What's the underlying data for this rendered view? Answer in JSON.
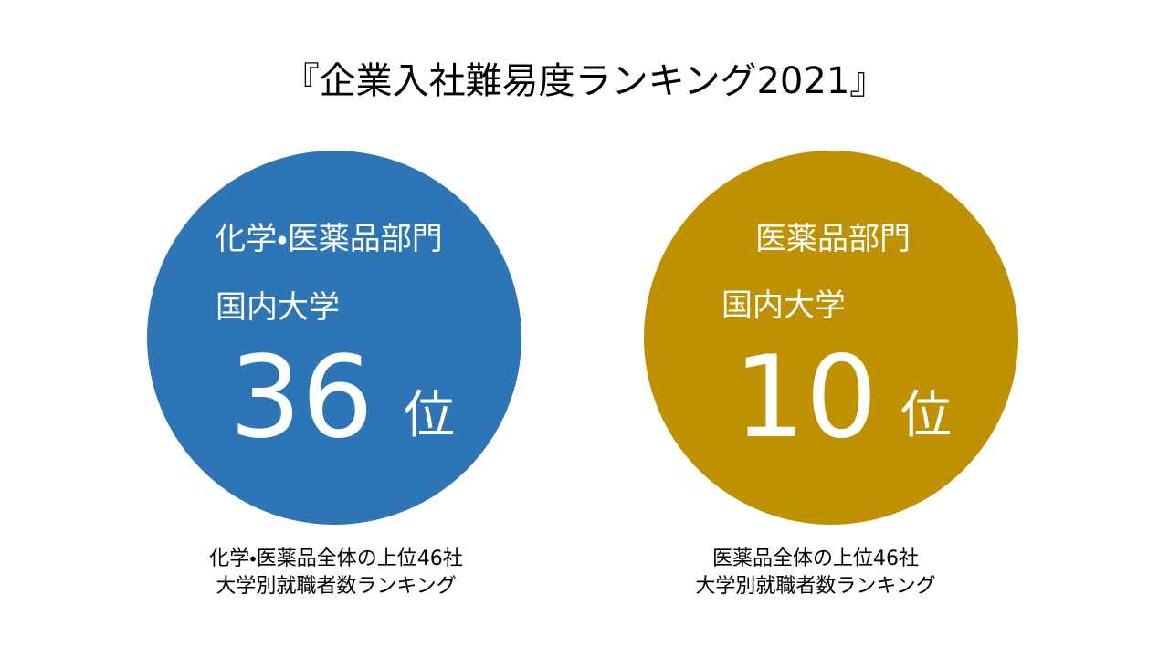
{
  "title": "『企業入社難易度ランキング2021』",
  "panels": [
    {
      "category": "化学・医薬品部門",
      "scope": "国内大学",
      "rank": "36",
      "rank_unit": "位",
      "caption": [
        "化学・医薬品全体の上位46社",
        "大学別就職者数ランキング"
      ]
    },
    {
      "category": "医薬品部門",
      "scope": "国内大学",
      "rank": "10",
      "rank_unit": "位",
      "caption": [
        "医薬品全体の上位46社",
        "大学別就職者数ランキング"
      ]
    }
  ]
}
